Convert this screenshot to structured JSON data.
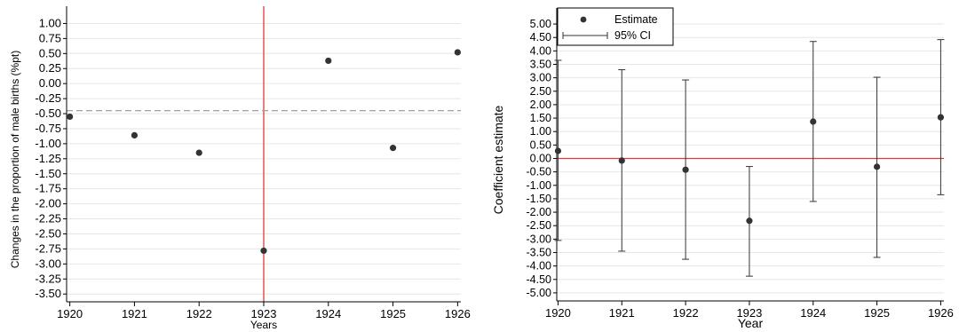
{
  "chart_data": [
    {
      "type": "scatter",
      "title": "",
      "xlabel": "Years",
      "ylabel": "Changes in the proportion of male births (%pt)",
      "x": [
        1920,
        1921,
        1922,
        1923,
        1924,
        1925,
        1926
      ],
      "y": [
        -0.55,
        -0.86,
        -1.15,
        -2.78,
        0.38,
        -1.07,
        0.52
      ],
      "xticks": [
        "1920",
        "1921",
        "1922",
        "1923",
        "1924",
        "1925",
        "1926"
      ],
      "yticks": [
        "1.00",
        "0.75",
        "0.50",
        "0.25",
        "0.00",
        "-0.25",
        "-0.50",
        "-0.75",
        "-1.00",
        "-1.25",
        "-1.50",
        "-1.75",
        "-2.00",
        "-2.25",
        "-2.50",
        "-2.75",
        "-3.00",
        "-3.25",
        "-3.50"
      ],
      "ylim": [
        -3.63,
        1.11
      ],
      "xlim": [
        1919.95,
        1926.05
      ],
      "grid": true,
      "reference_lines": [
        {
          "orientation": "vertical",
          "value": 1923,
          "color": "#e03a3a",
          "style": "solid"
        },
        {
          "orientation": "horizontal",
          "value": -0.45,
          "color": "#a0a0a0",
          "style": "dashed"
        }
      ],
      "marker_color": "#333333"
    },
    {
      "type": "scatter",
      "title": "",
      "xlabel": "Year",
      "ylabel": "Coefficient estimate",
      "x": [
        1920,
        1921,
        1922,
        1923,
        1924,
        1925,
        1926
      ],
      "y": [
        0.28,
        -0.08,
        -0.42,
        -2.32,
        1.37,
        -0.31,
        1.53
      ],
      "ci_low": [
        -3.05,
        -3.45,
        -3.75,
        -4.38,
        -1.6,
        -3.68,
        -1.35
      ],
      "ci_high": [
        3.65,
        3.3,
        2.92,
        -0.3,
        4.35,
        3.02,
        4.42
      ],
      "xticks": [
        "1920",
        "1921",
        "1922",
        "1923",
        "1924",
        "1925",
        "1926"
      ],
      "yticks": [
        "5.00",
        "4.50",
        "4.00",
        "3.50",
        "3.00",
        "2.50",
        "2.00",
        "1.50",
        "1.00",
        "0.50",
        "0.00",
        "-0.50",
        "-1.00",
        "-1.50",
        "-2.00",
        "-2.50",
        "-3.00",
        "-3.50",
        "-4.00",
        "-4.50",
        "-5.00"
      ],
      "ylim": [
        -5.3,
        5.2
      ],
      "xlim": [
        1919.98,
        1926.05
      ],
      "grid": true,
      "reference_lines": [
        {
          "orientation": "horizontal",
          "value": 0,
          "color": "#e03a3a",
          "style": "solid"
        }
      ],
      "legend": {
        "placement": "top-left",
        "entries": [
          "Estimate",
          "95% CI"
        ]
      },
      "marker_color": "#333333"
    }
  ]
}
